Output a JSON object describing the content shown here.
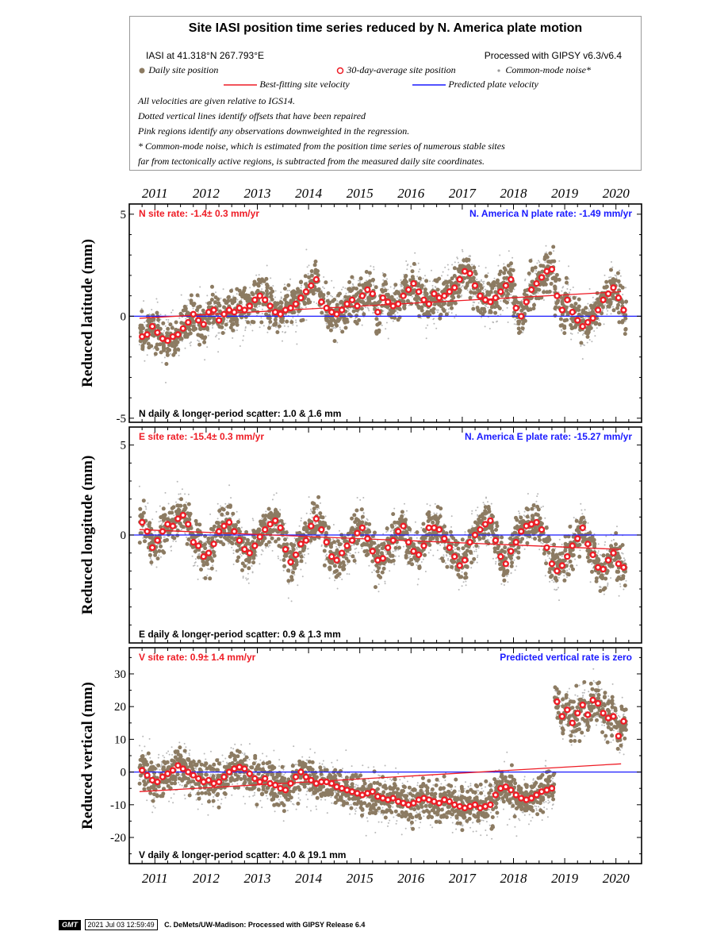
{
  "header": {
    "title": "Site IASI position time series reduced by N. America plate motion",
    "site_label": "IASI at 41.318°N 267.793°E",
    "processed_label": "Processed with GIPSY v6.3/v6.4",
    "legend_daily": "Daily site position",
    "legend_avg": "30-day-average site position",
    "legend_cm": "Common-mode noise*",
    "legend_best": "Best-fitting site velocity",
    "legend_pred": "Predicted plate velocity",
    "note1": "All velocities are given relative to IGS14.",
    "note2": "Dotted vertical lines identify offsets that have been repaired",
    "note3": "Pink regions identify any observations downweighted in the regression.",
    "note4": "* Common-mode noise, which is estimated from the position time series of numerous stable sites",
    "note5": "far from tectonically active regions, is subtracted from the measured daily site coordinates."
  },
  "footer": {
    "logo": "GMT",
    "timestamp": "2021 Jul 03 12:59:49",
    "credit": "C. DeMets/UW-Madison: Processed with GIPSY Release 6.4"
  },
  "colors": {
    "daily": "#8c7b62",
    "common_mode": "#b8b8b8",
    "avg_fill": "#ee1c25",
    "best_fit": "#ee1c25",
    "predicted": "#1a1aff"
  },
  "chart_data": [
    {
      "type": "scatter",
      "panel": "north",
      "ylabel": "Reduced latitude (mm)",
      "xlim": [
        2010.5,
        2020.5
      ],
      "ylim": [
        -5.2,
        5.5
      ],
      "yticks": [
        -5,
        0,
        5
      ],
      "xticks": [
        2011,
        2012,
        2013,
        2014,
        2015,
        2016,
        2017,
        2018,
        2019,
        2020
      ],
      "site_rate_label": "N site rate:  -1.4± 0.3 mm/yr",
      "plate_rate_label": "N. America N plate rate: -1.49 mm/yr",
      "scatter_label": "N daily & longer-period scatter:   1.0 &   1.6 mm",
      "best_fit": {
        "x": [
          2010.7,
          2020.1
        ],
        "y": [
          -0.1,
          1.2
        ]
      },
      "predicted": {
        "x": [
          2010.5,
          2020.5
        ],
        "y": [
          0,
          0
        ]
      },
      "avg_30day": {
        "x": [
          2010.75,
          2010.85,
          2010.95,
          2011.05,
          2011.15,
          2011.25,
          2011.35,
          2011.45,
          2011.55,
          2011.65,
          2011.75,
          2011.85,
          2011.95,
          2012.05,
          2012.15,
          2012.25,
          2012.35,
          2012.45,
          2012.55,
          2012.65,
          2012.75,
          2012.85,
          2012.95,
          2013.05,
          2013.15,
          2013.25,
          2013.35,
          2013.45,
          2013.55,
          2013.65,
          2013.75,
          2013.85,
          2013.95,
          2014.05,
          2014.15,
          2014.25,
          2014.35,
          2014.45,
          2014.55,
          2014.65,
          2014.75,
          2014.85,
          2014.95,
          2015.05,
          2015.15,
          2015.25,
          2015.35,
          2015.45,
          2015.55,
          2015.65,
          2015.75,
          2015.85,
          2015.95,
          2016.05,
          2016.15,
          2016.25,
          2016.35,
          2016.45,
          2016.55,
          2016.65,
          2016.75,
          2016.85,
          2016.95,
          2017.05,
          2017.15,
          2017.25,
          2017.35,
          2017.45,
          2017.55,
          2017.65,
          2017.75,
          2017.85,
          2017.95,
          2018.05,
          2018.15,
          2018.25,
          2018.35,
          2018.45,
          2018.55,
          2018.65,
          2018.75,
          2018.85,
          2018.95,
          2019.05,
          2019.15,
          2019.25,
          2019.35,
          2019.45,
          2019.55,
          2019.65,
          2019.75,
          2019.85,
          2019.95,
          2020.05,
          2020.15
        ],
        "y": [
          -1.0,
          -0.9,
          -0.5,
          -0.8,
          -1.1,
          -1.2,
          -1.0,
          -0.9,
          -0.6,
          -0.3,
          0.1,
          -0.2,
          -0.4,
          0.2,
          0.3,
          -0.2,
          0.1,
          0.3,
          0.2,
          0.4,
          0.3,
          0.5,
          0.8,
          1.0,
          0.8,
          0.5,
          0.2,
          0.1,
          0.3,
          0.4,
          0.6,
          0.9,
          1.2,
          1.5,
          1.8,
          0.7,
          0.4,
          0.2,
          0.1,
          0.3,
          0.6,
          0.8,
          0.5,
          1.0,
          1.3,
          1.1,
          0.2,
          0.9,
          0.7,
          0.5,
          0.6,
          1.0,
          1.3,
          1.6,
          1.2,
          0.8,
          0.6,
          1.1,
          0.9,
          1.0,
          1.2,
          1.4,
          1.8,
          2.2,
          2.1,
          1.5,
          1.0,
          0.8,
          0.7,
          0.9,
          1.2,
          1.5,
          1.8,
          0.4,
          0.0,
          0.7,
          1.3,
          1.6,
          1.9,
          2.2,
          2.3,
          1.0,
          0.3,
          0.8,
          0.2,
          -0.2,
          -0.5,
          -0.3,
          -0.1,
          0.3,
          0.8,
          1.1,
          1.4,
          0.9,
          0.3
        ]
      }
    },
    {
      "type": "scatter",
      "panel": "east",
      "ylabel": "Reduced longitude (mm)",
      "xlim": [
        2010.5,
        2020.5
      ],
      "ylim": [
        -6,
        6
      ],
      "yticks": [
        0,
        5
      ],
      "xticks": [
        2011,
        2012,
        2013,
        2014,
        2015,
        2016,
        2017,
        2018,
        2019,
        2020
      ],
      "site_rate_label": "E site rate:  -15.4± 0.3 mm/yr",
      "plate_rate_label": "N. America E plate rate: -15.27 mm/yr",
      "scatter_label": "E daily & longer-period scatter:   0.9 &   1.3 mm",
      "best_fit": {
        "x": [
          2010.7,
          2020.1
        ],
        "y": [
          0.3,
          -0.8
        ]
      },
      "predicted": {
        "x": [
          2010.5,
          2020.5
        ],
        "y": [
          0,
          0
        ]
      },
      "avg_30day": {
        "x": [
          2010.75,
          2010.85,
          2010.95,
          2011.05,
          2011.15,
          2011.25,
          2011.35,
          2011.45,
          2011.55,
          2011.65,
          2011.75,
          2011.85,
          2011.95,
          2012.05,
          2012.15,
          2012.25,
          2012.35,
          2012.45,
          2012.55,
          2012.65,
          2012.75,
          2012.85,
          2012.95,
          2013.05,
          2013.15,
          2013.25,
          2013.35,
          2013.45,
          2013.55,
          2013.65,
          2013.75,
          2013.85,
          2013.95,
          2014.05,
          2014.15,
          2014.25,
          2014.35,
          2014.45,
          2014.55,
          2014.65,
          2014.75,
          2014.85,
          2014.95,
          2015.05,
          2015.15,
          2015.25,
          2015.35,
          2015.45,
          2015.55,
          2015.65,
          2015.75,
          2015.85,
          2015.95,
          2016.05,
          2016.15,
          2016.25,
          2016.35,
          2016.45,
          2016.55,
          2016.65,
          2016.75,
          2016.85,
          2016.95,
          2017.05,
          2017.15,
          2017.25,
          2017.35,
          2017.45,
          2017.55,
          2017.65,
          2017.75,
          2017.85,
          2017.95,
          2018.05,
          2018.15,
          2018.25,
          2018.35,
          2018.45,
          2018.55,
          2018.65,
          2018.75,
          2018.85,
          2018.95,
          2019.05,
          2019.15,
          2019.25,
          2019.35,
          2019.45,
          2019.55,
          2019.65,
          2019.75,
          2019.85,
          2019.95,
          2020.05,
          2020.15
        ],
        "y": [
          0.7,
          0.2,
          -0.7,
          -0.3,
          0.2,
          0.6,
          0.5,
          0.9,
          1.1,
          0.6,
          -0.4,
          -0.6,
          -1.2,
          -1.0,
          -0.5,
          0.2,
          0.5,
          0.7,
          0.2,
          -0.3,
          -0.8,
          -1.0,
          -0.6,
          -0.1,
          0.3,
          0.6,
          0.8,
          0.4,
          -0.8,
          -1.5,
          -1.1,
          -0.5,
          -0.3,
          0.5,
          0.9,
          0.3,
          -0.4,
          -1.2,
          -1.4,
          -1.0,
          -0.6,
          -0.3,
          0.1,
          0.4,
          -0.2,
          -0.9,
          -1.4,
          -1.3,
          -0.7,
          -0.3,
          0.2,
          0.5,
          -0.4,
          -0.9,
          -1.1,
          -0.6,
          0.4,
          0.4,
          0.3,
          -0.2,
          -0.7,
          -1.2,
          -1.7,
          -1.4,
          -0.4,
          0.0,
          0.3,
          0.6,
          0.8,
          -0.3,
          -1.2,
          -1.6,
          -0.9,
          -0.4,
          0.2,
          0.5,
          0.6,
          0.7,
          0.3,
          -0.7,
          -1.6,
          -2.0,
          -1.7,
          -1.2,
          -0.6,
          -0.2,
          0.4,
          -0.5,
          -1.1,
          -1.8,
          -1.9,
          -1.4,
          -1.0,
          -1.6,
          -1.8
        ]
      }
    },
    {
      "type": "scatter",
      "panel": "vertical",
      "ylabel": "Reduced vertical (mm)",
      "xlim": [
        2010.5,
        2020.5
      ],
      "ylim": [
        -28,
        38
      ],
      "yticks": [
        -20,
        -10,
        0,
        10,
        20,
        30
      ],
      "xticks": [
        2011,
        2012,
        2013,
        2014,
        2015,
        2016,
        2017,
        2018,
        2019,
        2020
      ],
      "site_rate_label": "V site rate:  0.9± 1.4 mm/yr",
      "plate_rate_label": "Predicted vertical rate is zero",
      "scatter_label": "V daily & longer-period scatter:   4.0 &  19.1 mm",
      "best_fit": {
        "x": [
          2010.7,
          2020.1
        ],
        "y": [
          -6,
          2.5
        ]
      },
      "predicted": {
        "x": [
          2010.5,
          2020.5
        ],
        "y": [
          0,
          0
        ]
      },
      "avg_30day": {
        "x": [
          2010.75,
          2010.85,
          2010.95,
          2011.05,
          2011.15,
          2011.25,
          2011.35,
          2011.45,
          2011.55,
          2011.65,
          2011.75,
          2011.85,
          2011.95,
          2012.05,
          2012.15,
          2012.25,
          2012.35,
          2012.45,
          2012.55,
          2012.65,
          2012.75,
          2012.85,
          2012.95,
          2013.05,
          2013.15,
          2013.25,
          2013.35,
          2013.45,
          2013.55,
          2013.65,
          2013.75,
          2013.85,
          2013.95,
          2014.05,
          2014.15,
          2014.25,
          2014.35,
          2014.45,
          2014.55,
          2014.65,
          2014.75,
          2014.85,
          2014.95,
          2015.05,
          2015.15,
          2015.25,
          2015.35,
          2015.45,
          2015.55,
          2015.65,
          2015.75,
          2015.85,
          2015.95,
          2016.05,
          2016.15,
          2016.25,
          2016.35,
          2016.45,
          2016.55,
          2016.65,
          2016.75,
          2016.85,
          2016.95,
          2017.05,
          2017.15,
          2017.25,
          2017.35,
          2017.45,
          2017.55,
          2017.65,
          2017.75,
          2017.85,
          2017.95,
          2018.05,
          2018.15,
          2018.25,
          2018.35,
          2018.45,
          2018.55,
          2018.65,
          2018.75,
          2018.85,
          2018.95,
          2019.05,
          2019.15,
          2019.25,
          2019.35,
          2019.45,
          2019.55,
          2019.65,
          2019.75,
          2019.85,
          2019.95,
          2020.05,
          2020.15
        ],
        "y": [
          0.5,
          -1.0,
          -2.5,
          -3.0,
          -1.5,
          -0.5,
          0.5,
          2.0,
          1.0,
          0.0,
          -1.0,
          -2.0,
          -3.0,
          -2.5,
          -3.5,
          -3.0,
          -1.5,
          0.0,
          1.0,
          1.5,
          1.0,
          -0.5,
          -2.0,
          -3.0,
          -2.0,
          -3.5,
          -4.0,
          -5.0,
          -5.5,
          -3.5,
          -1.5,
          0.0,
          -1.5,
          -2.5,
          -3.5,
          -3.0,
          -3.0,
          -3.5,
          -4.5,
          -5.0,
          -5.5,
          -6.0,
          -6.5,
          -7.0,
          -6.5,
          -6.0,
          -7.5,
          -8.0,
          -8.5,
          -8.0,
          -9.0,
          -9.5,
          -10.0,
          -9.5,
          -8.5,
          -8.0,
          -8.5,
          -9.0,
          -9.5,
          -8.5,
          -9.0,
          -10.0,
          -10.5,
          -11.0,
          -10.5,
          -10.0,
          -11.0,
          -10.5,
          -10.0,
          -7.0,
          -5.0,
          -4.5,
          -5.5,
          -7.0,
          -8.0,
          -8.5,
          -8.0,
          -7.0,
          -6.0,
          -5.5,
          -5.0,
          21.5,
          17.0,
          19.0,
          15.0,
          18.0,
          20.5,
          17.5,
          22.0,
          21.0,
          18.0,
          16.5,
          17.0,
          11.0,
          15.5
        ]
      }
    }
  ]
}
